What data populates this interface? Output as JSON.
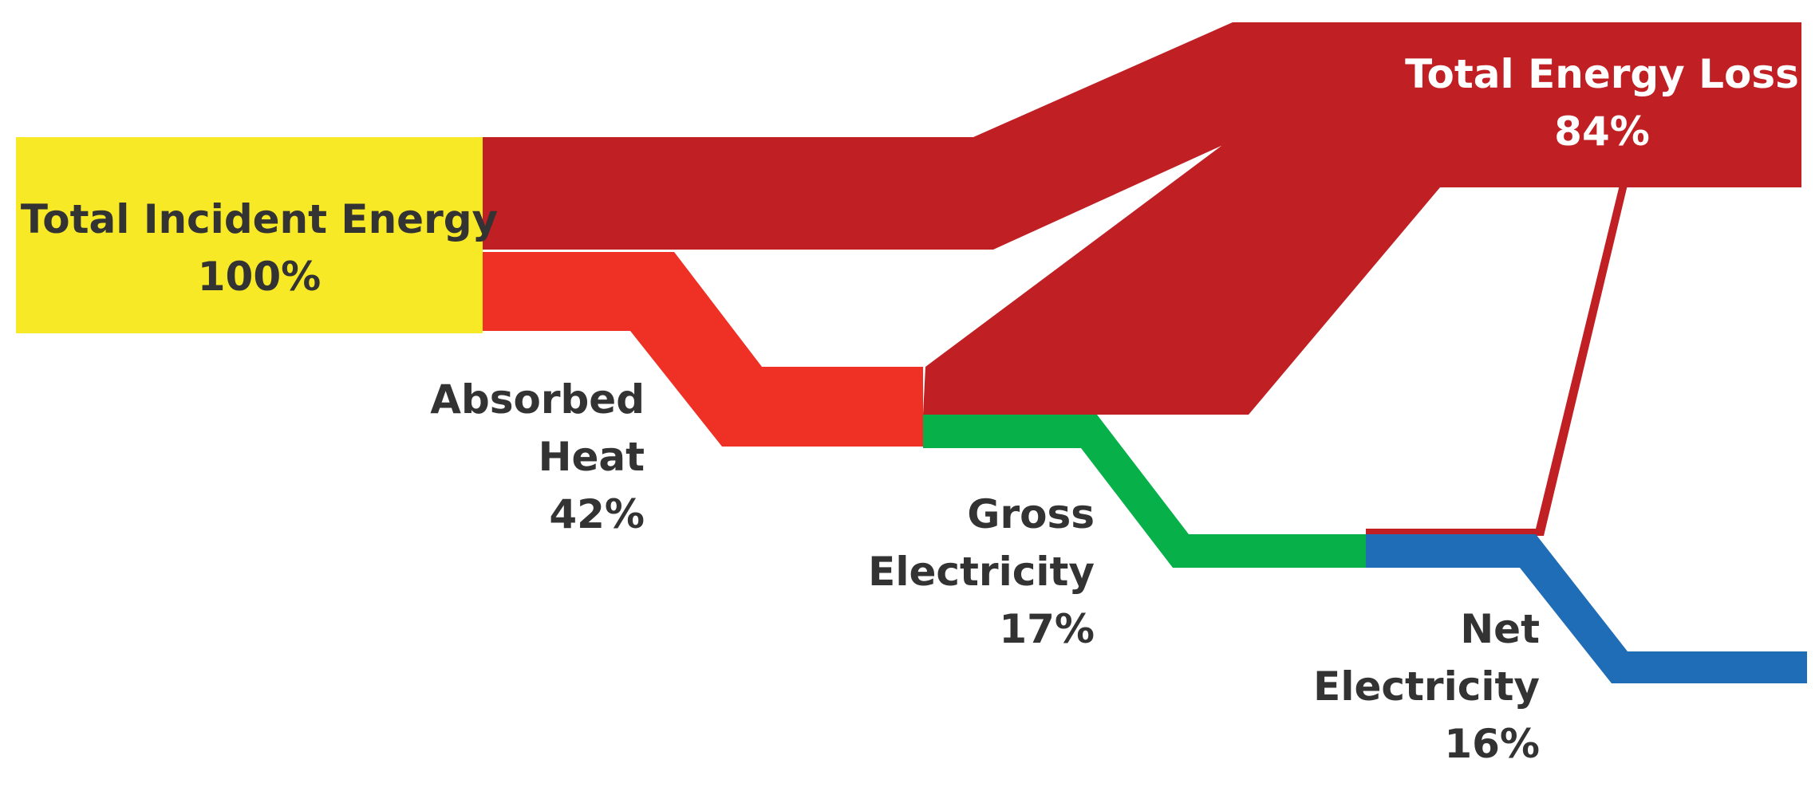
{
  "flows": {
    "incident": {
      "name": "Total Incident Energy",
      "value": "100%",
      "color": "#f7e926"
    },
    "loss": {
      "name": "Total Energy Loss",
      "value": "84%",
      "color": "#c01f24"
    },
    "absorbed": {
      "name_line1": "Absorbed",
      "name_line2": "Heat",
      "value": "42%",
      "color": "#ee3124"
    },
    "gross": {
      "name_line1": "Gross",
      "name_line2": "Electricity",
      "value": "17%",
      "color": "#08b04a"
    },
    "net": {
      "name_line1": "Net",
      "name_line2": "Electricity",
      "value": "16%",
      "color": "#1f6db6"
    }
  }
}
